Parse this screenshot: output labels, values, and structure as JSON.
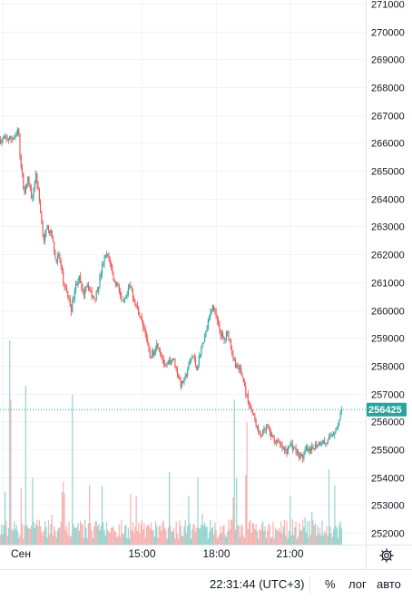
{
  "chart_data": {
    "type": "candlestick",
    "ylim": [
      251450,
      271300
    ],
    "y_ticks": [
      252000,
      253000,
      254000,
      255000,
      256000,
      257000,
      258000,
      259000,
      260000,
      261000,
      262000,
      263000,
      264000,
      265000,
      266000,
      267000,
      268000,
      269000,
      270000,
      271000
    ],
    "y_tick_labels": [
      "252000",
      "253000",
      "254000",
      "255000",
      "256000",
      "257000",
      "258000",
      "259000",
      "260000",
      "261000",
      "262000",
      "263000",
      "264000",
      "265000",
      "266000",
      "267000",
      "268000",
      "269000",
      "270000",
      "271000"
    ],
    "x_ticks": [
      {
        "label": "Сен",
        "t": 0.6
      },
      {
        "label": "15:00",
        "t": 36.5
      },
      {
        "label": "18:00",
        "t": 55.5
      },
      {
        "label": "21:00",
        "t": 74.5
      }
    ],
    "last_price": 256425,
    "last_price_label": "256425",
    "colors": {
      "up": "#26a69a",
      "down": "#ef5350",
      "up_vol": "#80cbc4",
      "down_vol": "#f5a3a3",
      "price_line": "#26a69a",
      "grid": "#f0f3fa"
    },
    "close_path": [
      [
        0,
        266100
      ],
      [
        4,
        266200
      ],
      [
        4.5,
        266600
      ],
      [
        5,
        265500
      ],
      [
        6,
        264200
      ],
      [
        7,
        264700
      ],
      [
        8,
        264000
      ],
      [
        9,
        264900
      ],
      [
        10,
        263800
      ],
      [
        11,
        262500
      ],
      [
        12,
        263000
      ],
      [
        13,
        262700
      ],
      [
        14,
        261800
      ],
      [
        15,
        261900
      ],
      [
        16,
        261000
      ],
      [
        17,
        260600
      ],
      [
        18,
        260000
      ],
      [
        19,
        260800
      ],
      [
        20,
        261200
      ],
      [
        21,
        260500
      ],
      [
        22,
        261000
      ],
      [
        23,
        260600
      ],
      [
        24,
        260400
      ],
      [
        25,
        260900
      ],
      [
        26,
        261600
      ],
      [
        27,
        262000
      ],
      [
        28,
        261700
      ],
      [
        29,
        261000
      ],
      [
        30,
        260900
      ],
      [
        31,
        260200
      ],
      [
        32,
        260400
      ],
      [
        33,
        260900
      ],
      [
        34,
        260400
      ],
      [
        35,
        260000
      ],
      [
        36,
        259600
      ],
      [
        37,
        259200
      ],
      [
        38,
        258300
      ],
      [
        39,
        258500
      ],
      [
        40,
        258800
      ],
      [
        41,
        258400
      ],
      [
        42,
        257900
      ],
      [
        43,
        258100
      ],
      [
        44,
        258300
      ],
      [
        45,
        257800
      ],
      [
        46,
        257300
      ],
      [
        47,
        257500
      ],
      [
        48,
        258000
      ],
      [
        49,
        258400
      ],
      [
        50,
        257900
      ],
      [
        51,
        258500
      ],
      [
        52,
        259000
      ],
      [
        53,
        259600
      ],
      [
        54,
        260200
      ],
      [
        55,
        259700
      ],
      [
        56,
        259200
      ],
      [
        57,
        258900
      ],
      [
        58,
        259200
      ],
      [
        59,
        258500
      ],
      [
        60,
        258000
      ],
      [
        61,
        257900
      ],
      [
        62,
        257400
      ],
      [
        63,
        256800
      ],
      [
        64,
        256400
      ],
      [
        65,
        256000
      ],
      [
        66,
        255500
      ],
      [
        67,
        255600
      ],
      [
        68,
        255800
      ],
      [
        69,
        255500
      ],
      [
        70,
        255300
      ],
      [
        71,
        255200
      ],
      [
        72,
        255000
      ],
      [
        73,
        254900
      ],
      [
        74,
        255200
      ],
      [
        75,
        255000
      ],
      [
        76,
        254800
      ],
      [
        77,
        254700
      ],
      [
        78,
        255000
      ],
      [
        79,
        254900
      ],
      [
        80,
        255100
      ],
      [
        81,
        255200
      ],
      [
        82,
        255300
      ],
      [
        83,
        255200
      ],
      [
        84,
        255400
      ],
      [
        85,
        255600
      ],
      [
        86,
        255900
      ],
      [
        87,
        256425
      ]
    ]
  },
  "status_bar": {
    "time": "22:31:44 (UTC+3)",
    "percent": "%",
    "log": "лог",
    "auto": "авто"
  },
  "icons": {
    "settings": "gear-icon"
  }
}
